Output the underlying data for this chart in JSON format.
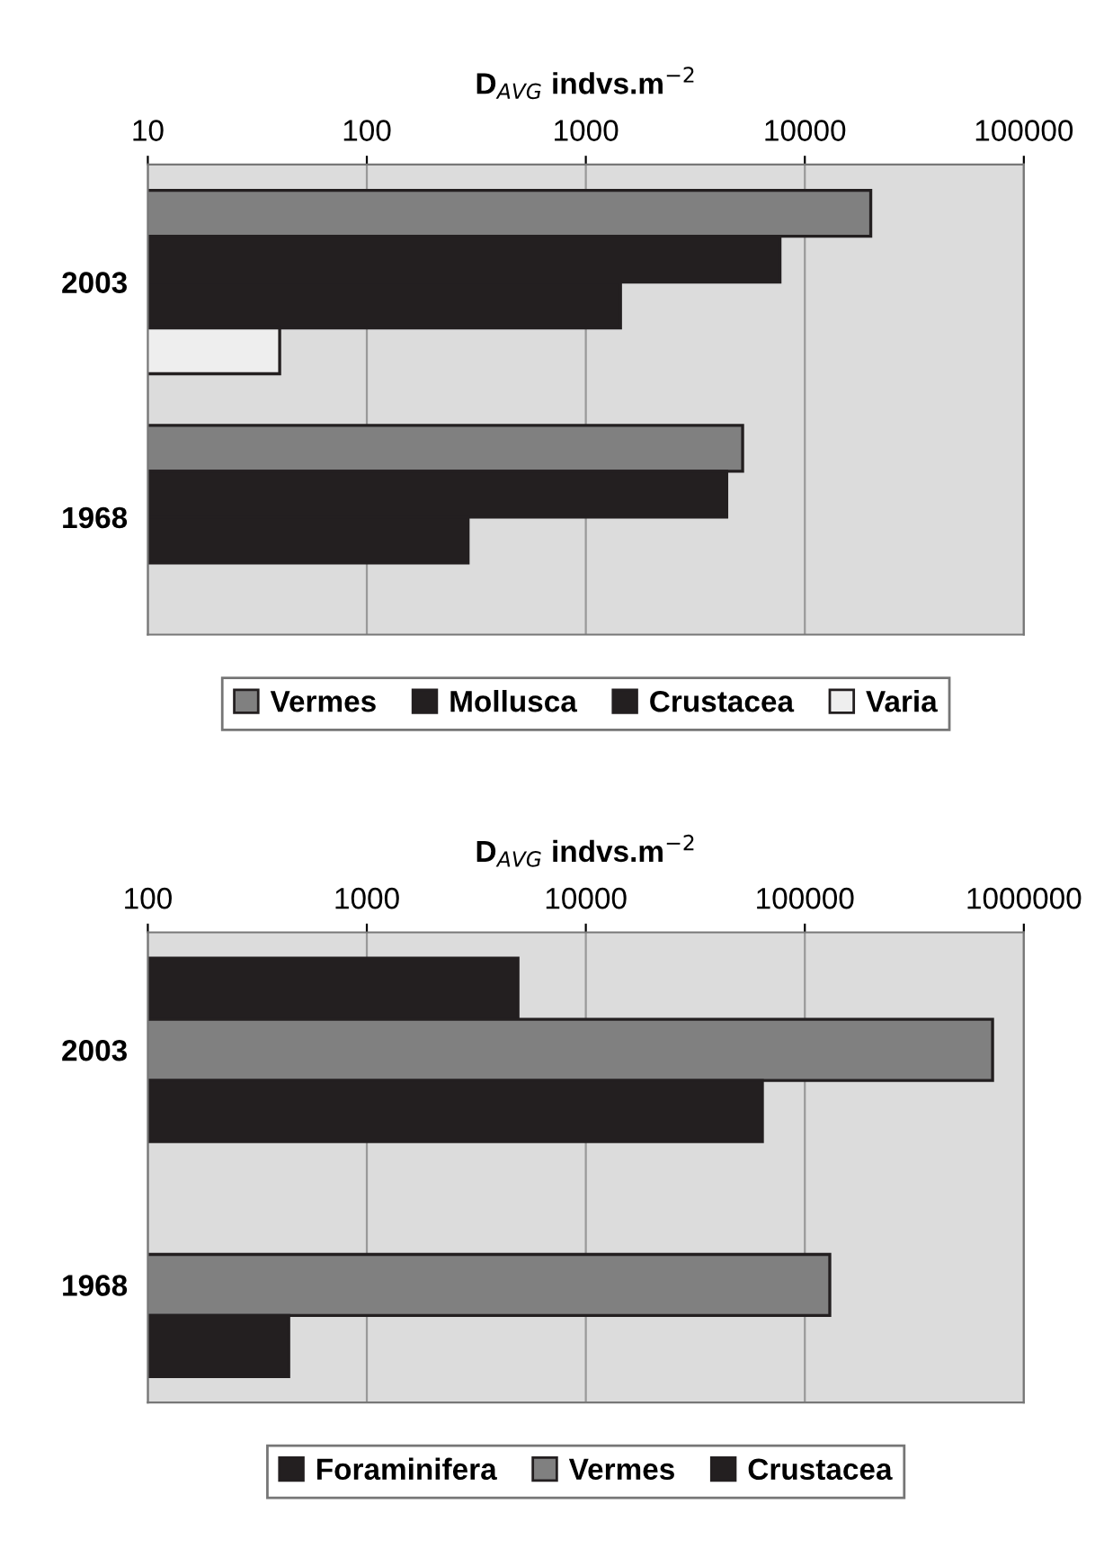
{
  "chart_data": [
    {
      "type": "bar",
      "orientation": "horizontal",
      "xlabel": "D$_{AVG}$ indvs.m$^{−2}$",
      "categories": [
        "2003",
        "1968"
      ],
      "log": "x",
      "xlim": [
        10,
        100000
      ],
      "xticks": [
        10,
        100,
        1000,
        10000,
        100000
      ],
      "grid": "x",
      "legend": "bottom",
      "series": [
        {
          "name": "Vermes",
          "color": "#808080",
          "values": [
            20000,
            5200
          ]
        },
        {
          "name": "Mollusca",
          "color": "#231f20",
          "values": [
            7700,
            4400
          ]
        },
        {
          "name": "Crustacea",
          "color": "#231f20",
          "values": [
            1440,
            290
          ]
        },
        {
          "name": "Varia",
          "color": "#eeeeee",
          "values": [
            40,
            null
          ]
        }
      ]
    },
    {
      "type": "bar",
      "orientation": "horizontal",
      "xlabel": "D$_{AVG}$ indvs.m$^{−2}$",
      "categories": [
        "2003",
        "1968"
      ],
      "log": "x",
      "xlim": [
        100,
        1000000
      ],
      "xticks": [
        100,
        1000,
        10000,
        100000,
        1000000
      ],
      "grid": "x",
      "legend": "bottom",
      "series": [
        {
          "name": "Foraminifera",
          "color": "#231f20",
          "values": [
            4900,
            null
          ]
        },
        {
          "name": "Vermes",
          "color": "#808080",
          "values": [
            720000,
            130000
          ]
        },
        {
          "name": "Crustacea",
          "color": "#231f20",
          "values": [
            64000,
            440
          ]
        }
      ]
    }
  ]
}
